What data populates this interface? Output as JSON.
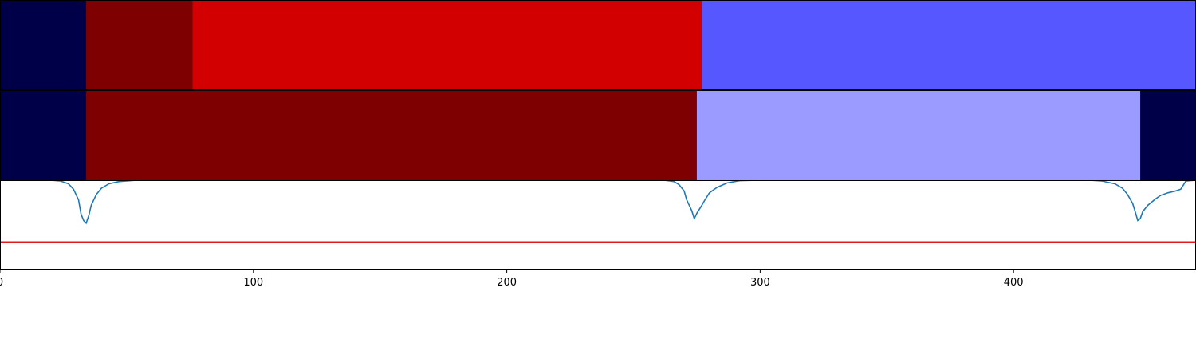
{
  "chart_data": [
    {
      "type": "heatmap",
      "panel": "segmentation-track-1",
      "segments": [
        {
          "start": 0,
          "end": 34,
          "color": "#000048"
        },
        {
          "start": 34,
          "end": 76,
          "color": "#7e0000"
        },
        {
          "start": 76,
          "end": 277,
          "color": "#d20000"
        },
        {
          "start": 277,
          "end": 472,
          "color": "#5757ff"
        }
      ]
    },
    {
      "type": "heatmap",
      "panel": "segmentation-track-2",
      "segments": [
        {
          "start": 0,
          "end": 34,
          "color": "#000048"
        },
        {
          "start": 34,
          "end": 275,
          "color": "#7e0000"
        },
        {
          "start": 275,
          "end": 450,
          "color": "#9a9aff"
        },
        {
          "start": 450,
          "end": 472,
          "color": "#000048"
        }
      ]
    },
    {
      "type": "line",
      "panel": "boundary-score",
      "xlim": [
        0,
        472
      ],
      "ylim": [
        0,
        1
      ],
      "xticks": [
        0,
        100,
        200,
        300,
        400
      ],
      "xtick_labels": [
        "0",
        "100",
        "200",
        "300",
        "400"
      ],
      "series": [
        {
          "color": "#1f77b4",
          "points": [
            [
              0,
              1.0
            ],
            [
              20,
              1.0
            ],
            [
              24,
              0.99
            ],
            [
              27,
              0.96
            ],
            [
              29,
              0.9
            ],
            [
              31,
              0.78
            ],
            [
              32,
              0.62
            ],
            [
              33,
              0.55
            ],
            [
              34,
              0.52
            ],
            [
              35,
              0.6
            ],
            [
              36,
              0.72
            ],
            [
              38,
              0.84
            ],
            [
              40,
              0.91
            ],
            [
              43,
              0.96
            ],
            [
              47,
              0.985
            ],
            [
              54,
              1.0
            ],
            [
              70,
              1.0
            ],
            [
              120,
              1.0
            ],
            [
              200,
              1.0
            ],
            [
              262,
              1.0
            ],
            [
              266,
              0.985
            ],
            [
              268,
              0.95
            ],
            [
              270,
              0.88
            ],
            [
              271,
              0.78
            ],
            [
              273,
              0.66
            ],
            [
              274,
              0.57
            ],
            [
              275,
              0.63
            ],
            [
              277,
              0.72
            ],
            [
              278,
              0.77
            ],
            [
              280,
              0.86
            ],
            [
              283,
              0.92
            ],
            [
              287,
              0.97
            ],
            [
              292,
              0.995
            ],
            [
              300,
              1.0
            ],
            [
              380,
              1.0
            ],
            [
              430,
              1.0
            ],
            [
              435,
              0.99
            ],
            [
              440,
              0.96
            ],
            [
              443,
              0.91
            ],
            [
              445,
              0.84
            ],
            [
              447,
              0.74
            ],
            [
              448,
              0.65
            ],
            [
              449,
              0.55
            ],
            [
              450,
              0.57
            ],
            [
              451,
              0.65
            ],
            [
              453,
              0.72
            ],
            [
              456,
              0.79
            ],
            [
              458,
              0.83
            ],
            [
              461,
              0.86
            ],
            [
              464,
              0.88
            ],
            [
              466,
              0.9
            ],
            [
              468,
              0.99
            ],
            [
              472,
              1.0
            ]
          ]
        },
        {
          "color": "#e31a1c",
          "points": [
            [
              0,
              0.31
            ],
            [
              472,
              0.31
            ]
          ]
        }
      ]
    }
  ]
}
